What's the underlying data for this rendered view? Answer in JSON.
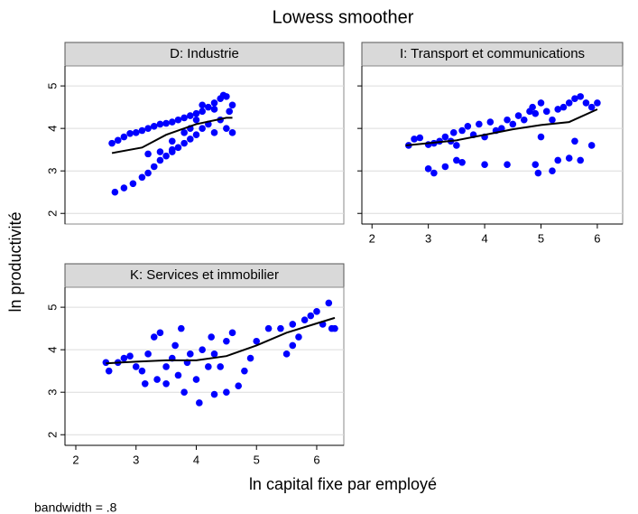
{
  "title": "Lowess smoother",
  "x_label": "ln capital fixe par employé",
  "y_label": "ln productivité",
  "note": "bandwidth = .8",
  "chart_data": [
    {
      "type": "scatter",
      "title": "D: Industrie",
      "color": "#0000ff",
      "x": [
        2.6,
        2.7,
        2.8,
        2.9,
        3.0,
        3.1,
        3.2,
        3.3,
        3.4,
        3.5,
        3.6,
        3.7,
        3.8,
        3.9,
        4.0,
        4.1,
        4.2,
        4.3,
        4.4,
        4.45,
        4.5,
        4.6,
        2.65,
        2.8,
        2.95,
        3.1,
        3.2,
        3.3,
        3.4,
        3.5,
        3.6,
        3.7,
        3.8,
        3.9,
        4.0,
        3.2,
        3.4,
        3.6,
        3.6,
        3.8,
        3.9,
        4.0,
        4.1,
        4.2,
        4.3,
        4.4,
        4.5,
        4.55,
        4.6,
        4.1,
        4.3
      ],
      "values": [
        3.65,
        3.72,
        3.8,
        3.88,
        3.9,
        3.95,
        4.0,
        4.05,
        4.1,
        4.12,
        4.15,
        4.2,
        4.25,
        4.3,
        4.35,
        4.4,
        4.5,
        4.6,
        4.7,
        4.78,
        4.75,
        4.55,
        2.5,
        2.6,
        2.7,
        2.85,
        2.95,
        3.1,
        3.25,
        3.35,
        3.45,
        3.55,
        3.65,
        3.75,
        3.85,
        3.4,
        3.45,
        3.5,
        3.7,
        3.9,
        4.0,
        4.2,
        4.0,
        4.1,
        3.9,
        4.2,
        4.0,
        4.4,
        3.9,
        4.55,
        4.45
      ],
      "lowess": {
        "x": [
          2.6,
          3.1,
          3.5,
          4.0,
          4.5,
          4.6
        ],
        "values": [
          3.42,
          3.55,
          3.85,
          4.1,
          4.25,
          4.25
        ],
        "color": "#000000"
      },
      "xlim": [
        1.82,
        6.45
      ],
      "ylim": [
        1.75,
        5.47
      ],
      "xticks": [
        2,
        3,
        4,
        5,
        6
      ],
      "yticks": [
        2,
        3,
        4,
        5
      ],
      "grid": true,
      "show_x_tick_labels": false,
      "show_y_tick_labels": true
    },
    {
      "type": "scatter",
      "title": "I: Transport et communications",
      "color": "#0000ff",
      "x": [
        2.65,
        2.75,
        2.85,
        3.0,
        3.1,
        3.2,
        3.3,
        3.4,
        3.45,
        3.5,
        3.6,
        3.7,
        3.8,
        3.9,
        4.0,
        4.1,
        4.2,
        4.3,
        4.4,
        4.5,
        4.6,
        4.7,
        4.8,
        4.85,
        4.9,
        5.0,
        5.1,
        5.2,
        5.3,
        5.4,
        5.5,
        5.6,
        5.7,
        5.8,
        5.9,
        6.0,
        3.0,
        3.1,
        3.3,
        3.5,
        3.6,
        4.0,
        4.4,
        4.9,
        4.95,
        5.2,
        5.3,
        5.5,
        5.7,
        5.9,
        5.6,
        5.0
      ],
      "values": [
        3.6,
        3.75,
        3.78,
        3.62,
        3.65,
        3.7,
        3.8,
        3.7,
        3.9,
        3.6,
        3.95,
        4.05,
        3.85,
        4.1,
        3.8,
        4.15,
        3.95,
        4.0,
        4.2,
        4.1,
        4.3,
        4.2,
        4.4,
        4.5,
        4.35,
        4.6,
        4.4,
        4.2,
        4.45,
        4.5,
        4.6,
        4.7,
        4.75,
        4.6,
        4.5,
        4.6,
        3.05,
        2.95,
        3.1,
        3.25,
        3.2,
        3.15,
        3.15,
        3.15,
        2.95,
        3.0,
        3.25,
        3.3,
        3.25,
        3.6,
        3.7,
        3.8
      ],
      "lowess": {
        "x": [
          2.6,
          3.5,
          4.0,
          4.5,
          5.0,
          5.5,
          6.0
        ],
        "values": [
          3.6,
          3.72,
          3.85,
          3.98,
          4.08,
          4.15,
          4.45
        ],
        "color": "#000000"
      },
      "xlim": [
        1.82,
        6.45
      ],
      "ylim": [
        1.75,
        5.47
      ],
      "xticks": [
        2,
        3,
        4,
        5,
        6
      ],
      "yticks": [
        2,
        3,
        4,
        5
      ],
      "grid": true,
      "show_x_tick_labels": true,
      "show_y_tick_labels": false
    },
    {
      "type": "scatter",
      "title": "K: Services et immobilier",
      "color": "#0000ff",
      "x": [
        2.5,
        2.55,
        2.7,
        2.8,
        2.9,
        3.0,
        3.1,
        3.15,
        3.2,
        3.3,
        3.35,
        3.4,
        3.5,
        3.5,
        3.6,
        3.65,
        3.7,
        3.75,
        3.8,
        3.85,
        3.9,
        4.0,
        4.05,
        4.1,
        4.2,
        4.25,
        4.3,
        4.3,
        4.4,
        4.5,
        4.5,
        4.6,
        4.7,
        4.8,
        4.9,
        5.0,
        5.2,
        5.4,
        5.5,
        5.6,
        5.6,
        5.7,
        5.8,
        5.9,
        6.0,
        6.1,
        6.2,
        6.25,
        6.3
      ],
      "values": [
        3.7,
        3.5,
        3.7,
        3.8,
        3.85,
        3.6,
        3.5,
        3.2,
        3.9,
        4.3,
        3.3,
        4.4,
        3.6,
        3.2,
        3.8,
        4.1,
        3.4,
        4.5,
        3.0,
        3.7,
        3.9,
        3.3,
        2.75,
        4.0,
        3.6,
        4.3,
        3.9,
        2.95,
        3.6,
        4.2,
        3.0,
        4.4,
        3.15,
        3.5,
        3.8,
        4.2,
        4.5,
        4.5,
        3.9,
        4.1,
        4.6,
        4.3,
        4.7,
        4.8,
        4.9,
        4.6,
        5.1,
        4.5,
        4.5
      ],
      "lowess": {
        "x": [
          2.5,
          3.0,
          3.5,
          4.0,
          4.5,
          5.0,
          5.5,
          6.0,
          6.3
        ],
        "values": [
          3.68,
          3.72,
          3.75,
          3.75,
          3.85,
          4.1,
          4.4,
          4.62,
          4.75
        ],
        "color": "#000000"
      },
      "xlim": [
        1.82,
        6.45
      ],
      "ylim": [
        1.75,
        5.47
      ],
      "xticks": [
        2,
        3,
        4,
        5,
        6
      ],
      "yticks": [
        2,
        3,
        4,
        5
      ],
      "grid": true,
      "show_x_tick_labels": true,
      "show_y_tick_labels": true
    }
  ]
}
